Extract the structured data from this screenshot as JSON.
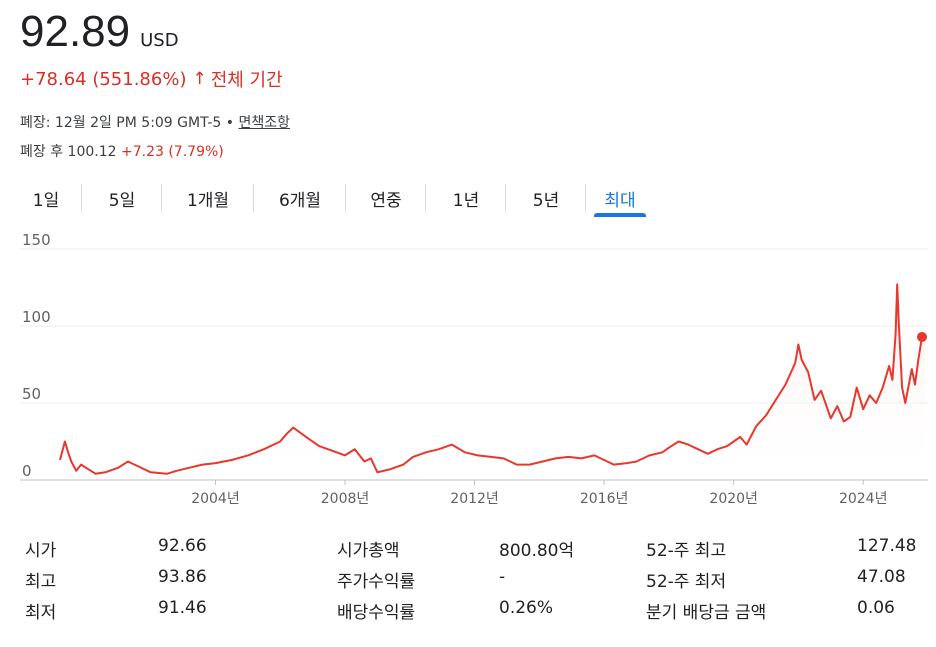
{
  "header": {
    "price": "92.89",
    "currency": "USD",
    "change": "+78.64 (551.86%)",
    "change_arrow": "↑",
    "period": "전체 기간",
    "close_info": "폐장: 12월 2일 PM 5:09 GMT-5 • ",
    "disclaimer": "면책조항",
    "after_hours_label": "폐장 후 100.12 ",
    "after_hours_change": "+7.23 (7.79%)"
  },
  "tabs": [
    {
      "label": "1일"
    },
    {
      "label": "5일"
    },
    {
      "label": "1개월"
    },
    {
      "label": "6개월"
    },
    {
      "label": "연중"
    },
    {
      "label": "1년"
    },
    {
      "label": "5년"
    },
    {
      "label": "최대",
      "active": true
    }
  ],
  "colors": {
    "line": "#e8372c",
    "fill": "#fce8e6",
    "accent": "#1a73e8",
    "down": "#d93025"
  },
  "chart_data": {
    "type": "line",
    "title": "",
    "xlabel": "",
    "ylabel": "",
    "yticks": [
      0,
      50,
      100,
      150
    ],
    "ylim": [
      0,
      150
    ],
    "xlim": [
      1999.2,
      2026.0
    ],
    "xticks": [
      {
        "value": 2004,
        "label": "2004년"
      },
      {
        "value": 2008,
        "label": "2008년"
      },
      {
        "value": 2012,
        "label": "2012년"
      },
      {
        "value": 2016,
        "label": "2016년"
      },
      {
        "value": 2020,
        "label": "2020년"
      },
      {
        "value": 2024,
        "label": "2024년"
      }
    ],
    "grid": true,
    "series": [
      {
        "x": [
          1999.2,
          1999.35,
          1999.45,
          1999.55,
          1999.7,
          1999.85,
          2000.0,
          2000.3,
          2000.6,
          2001.0,
          2001.3,
          2001.6,
          2002.0,
          2002.5,
          2002.8,
          2003.2,
          2003.6,
          2004.0,
          2004.5,
          2005.0,
          2005.5,
          2006.0,
          2006.2,
          2006.4,
          2006.6,
          2006.8,
          2007.2,
          2007.6,
          2008.0,
          2008.3,
          2008.6,
          2008.8,
          2009.0,
          2009.4,
          2009.8,
          2010.1,
          2010.5,
          2010.9,
          2011.3,
          2011.7,
          2012.1,
          2012.5,
          2012.9,
          2013.3,
          2013.7,
          2014.1,
          2014.5,
          2014.9,
          2015.3,
          2015.7,
          2016.0,
          2016.3,
          2016.7,
          2017.0,
          2017.4,
          2017.8,
          2018.0,
          2018.3,
          2018.6,
          2018.9,
          2019.2,
          2019.5,
          2019.8,
          2020.0,
          2020.2,
          2020.4,
          2020.7,
          2021.0,
          2021.3,
          2021.6,
          2021.9,
          2022.0,
          2022.1,
          2022.3,
          2022.5,
          2022.7,
          2023.0,
          2023.2,
          2023.4,
          2023.6,
          2023.8,
          2024.0,
          2024.2,
          2024.4,
          2024.6,
          2024.8,
          2024.9,
          2025.0,
          2025.05,
          2025.1,
          2025.2,
          2025.3,
          2025.5,
          2025.6,
          2025.7,
          2025.8,
          2025.9
        ],
        "values": [
          13,
          25,
          18,
          12,
          6,
          10,
          8,
          4,
          5,
          8,
          12,
          9,
          5,
          4,
          6,
          8,
          10,
          11,
          13,
          16,
          20,
          25,
          30,
          34,
          31,
          28,
          22,
          19,
          16,
          20,
          12,
          14,
          5,
          7,
          10,
          15,
          18,
          20,
          23,
          18,
          16,
          15,
          14,
          10,
          10,
          12,
          14,
          15,
          14,
          16,
          13,
          10,
          11,
          12,
          16,
          18,
          21,
          25,
          23,
          20,
          17,
          20,
          22,
          25,
          28,
          23,
          35,
          42,
          52,
          62,
          76,
          88,
          78,
          70,
          52,
          58,
          40,
          48,
          38,
          41,
          60,
          46,
          55,
          50,
          60,
          74,
          65,
          95,
          127,
          100,
          60,
          50,
          72,
          62,
          78,
          91,
          93
        ]
      }
    ],
    "end_point": 92.89
  },
  "stats": {
    "col1": [
      {
        "label": "시가",
        "value": "92.66"
      },
      {
        "label": "최고",
        "value": "93.86"
      },
      {
        "label": "최저",
        "value": "91.46"
      }
    ],
    "col2": [
      {
        "label": "시가총액",
        "value": "800.80억"
      },
      {
        "label": "주가수익률",
        "value": "-"
      },
      {
        "label": "배당수익률",
        "value": "0.26%"
      }
    ],
    "col3": [
      {
        "label": "52-주 최고",
        "value": "127.48"
      },
      {
        "label": "52-주 최저",
        "value": "47.08"
      },
      {
        "label": "분기 배당금 금액",
        "value": "0.06"
      }
    ]
  }
}
